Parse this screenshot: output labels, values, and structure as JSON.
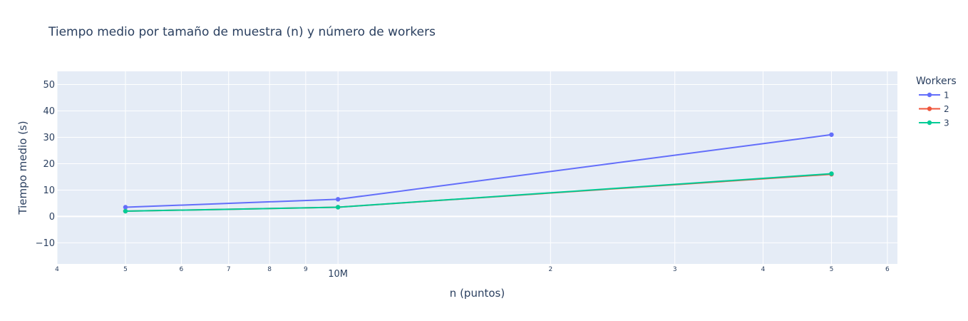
{
  "chart_data": {
    "type": "line",
    "title": "Tiempo medio por tamaño de muestra (n) y número de workers",
    "xlabel": "n (puntos)",
    "ylabel": "Tiempo medio (s)",
    "x_scale": "log",
    "x": [
      5000000,
      10000000,
      50000000
    ],
    "xlim": [
      4000000,
      62000000
    ],
    "ylim": [
      -18,
      55
    ],
    "y_ticks": [
      -10,
      0,
      10,
      20,
      30,
      40,
      50
    ],
    "x_ticks": [
      {
        "value": 4000000,
        "label": "4",
        "major": false
      },
      {
        "value": 5000000,
        "label": "5",
        "major": false
      },
      {
        "value": 6000000,
        "label": "6",
        "major": false
      },
      {
        "value": 7000000,
        "label": "7",
        "major": false
      },
      {
        "value": 8000000,
        "label": "8",
        "major": false
      },
      {
        "value": 9000000,
        "label": "9",
        "major": false
      },
      {
        "value": 10000000,
        "label": "10M",
        "major": true
      },
      {
        "value": 20000000,
        "label": "2",
        "major": false
      },
      {
        "value": 30000000,
        "label": "3",
        "major": false
      },
      {
        "value": 40000000,
        "label": "4",
        "major": false
      },
      {
        "value": 50000000,
        "label": "5",
        "major": false
      },
      {
        "value": 60000000,
        "label": "6",
        "major": false
      }
    ],
    "grid": true,
    "legend_title": "Workers",
    "legend_position": "right",
    "series": [
      {
        "name": "1",
        "color": "#636efa",
        "values": [
          3.5,
          6.5,
          31
        ]
      },
      {
        "name": "2",
        "color": "#ef553b",
        "values": [
          2.0,
          3.5,
          16
        ]
      },
      {
        "name": "3",
        "color": "#00cc96",
        "values": [
          2.0,
          3.5,
          16.2
        ]
      }
    ]
  }
}
